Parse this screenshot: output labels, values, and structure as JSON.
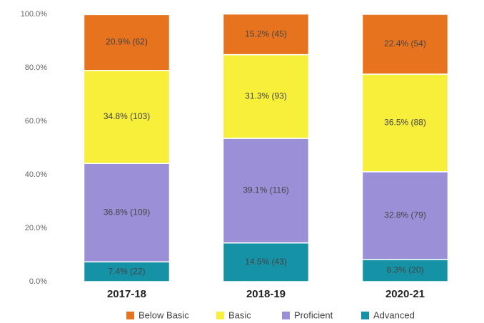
{
  "chart_data": {
    "type": "stacked_bar",
    "categories": [
      "2017-18",
      "2018-19",
      "2020-21"
    ],
    "series": [
      {
        "name": "Advanced",
        "color": "#1592a6",
        "values": [
          7.4,
          14.5,
          8.3
        ],
        "value_labels": [
          "7.4% (22)",
          "14.5% (43)",
          "8.3% (20)"
        ]
      },
      {
        "name": "Proficient",
        "color": "#9b8fd8",
        "values": [
          36.8,
          39.1,
          32.8
        ],
        "value_labels": [
          "36.8% (109)",
          "39.1% (116)",
          "32.8% (79)"
        ]
      },
      {
        "name": "Basic",
        "color": "#f7ef3a",
        "values": [
          34.8,
          31.3,
          36.5
        ],
        "value_labels": [
          "34.8% (103)",
          "31.3% (93)",
          "36.5% (88)"
        ]
      },
      {
        "name": "Below Basic",
        "color": "#e8731f",
        "values": [
          20.9,
          15.2,
          22.4
        ],
        "value_labels": [
          "20.9% (62)",
          "15.2% (45)",
          "22.4% (54)"
        ]
      }
    ],
    "ylim": [
      0,
      100
    ],
    "yticks": [
      {
        "value": 0,
        "label": "0.0%"
      },
      {
        "value": 20,
        "label": "20.0%"
      },
      {
        "value": 40,
        "label": "40.0%"
      },
      {
        "value": 60,
        "label": "60.0%"
      },
      {
        "value": 80,
        "label": "80.0%"
      },
      {
        "value": 100,
        "label": "100.0%"
      }
    ],
    "legend": "bottom"
  }
}
